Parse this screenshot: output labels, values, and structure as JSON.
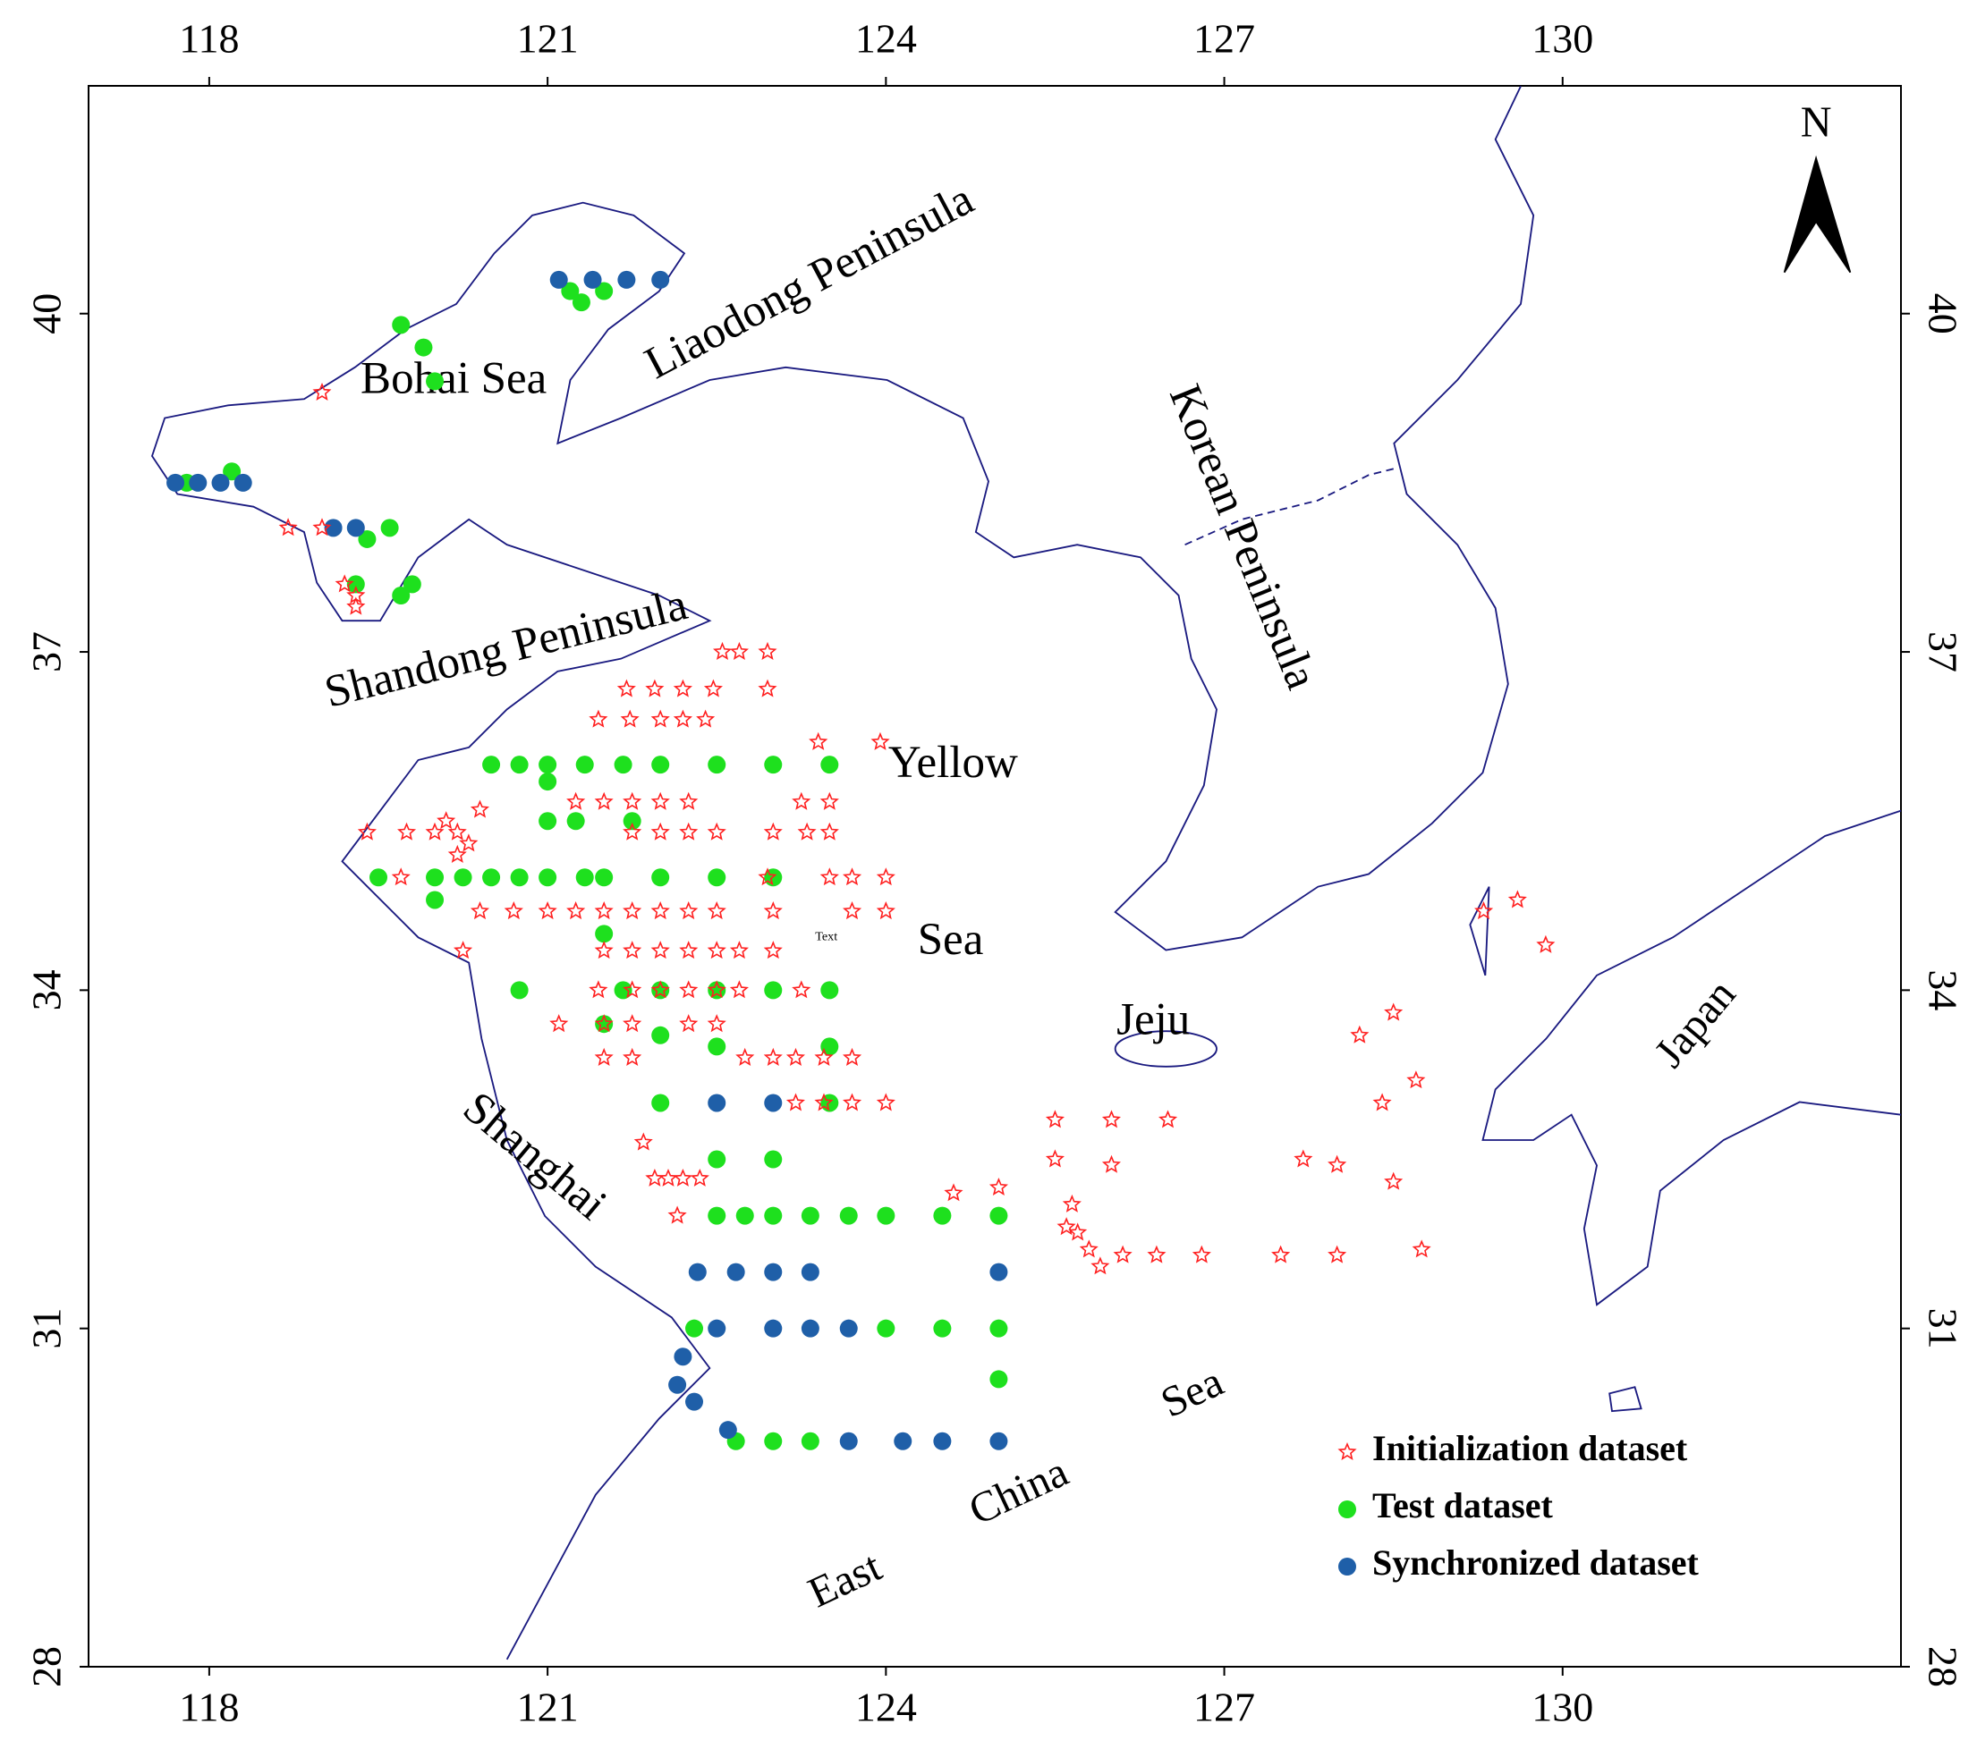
{
  "chart_data": {
    "type": "scatter",
    "xlim": [
      116.93,
      133.0
    ],
    "ylim": [
      28,
      42.02
    ],
    "xticks": [
      118,
      121,
      124,
      127,
      130
    ],
    "yticks": [
      28,
      31,
      34,
      37,
      40
    ],
    "annotations": [
      "Bohai Sea",
      "Liaodong Peninsula",
      "Korean Peninsula",
      "Shandong Peninsula",
      "Yellow",
      "Sea",
      "Jeju",
      "Shanghai",
      "Sea",
      "China",
      "East",
      "Japan",
      "Text",
      "N"
    ],
    "series": [
      {
        "name": "Initialization dataset",
        "color": "#ff2020",
        "marker": "star",
        "x": [
          122.55,
          122.7,
          122.95,
          121.7,
          121.95,
          122.2,
          122.47,
          122.95,
          121.45,
          121.73,
          122,
          122.2,
          122.4,
          123.4,
          123.95,
          121.25,
          121.5,
          121.75,
          122,
          122.25,
          123.25,
          123.5,
          119.4,
          119.75,
          120.0,
          120.2,
          121.75,
          122,
          122.25,
          122.5,
          123,
          123.3,
          123.5,
          119.7,
          122.95,
          123.5,
          123.7,
          124,
          120.4,
          120.7,
          121,
          121.25,
          121.5,
          121.75,
          122,
          122.25,
          122.5,
          123,
          123.7,
          124,
          120.25,
          121.5,
          121.75,
          122,
          122.25,
          122.5,
          122.7,
          123,
          121.45,
          121.75,
          122,
          122.25,
          122.5,
          122.7,
          123.25,
          121.1,
          121.5,
          121.75,
          122.25,
          122.5,
          121.5,
          121.75,
          122.75,
          123,
          123.2,
          123.45,
          123.7,
          123.2,
          123.45,
          123.7,
          124,
          121.85,
          121.95,
          122.07,
          122.2,
          122.35,
          122.15,
          125.5,
          126.0,
          126.5,
          125.5,
          126.0,
          124.6,
          125.0,
          125.65,
          125.6,
          125.7,
          125.8,
          125.9,
          126.1,
          126.4,
          126.8,
          127.5,
          128.0,
          128.75,
          127.7,
          128.0,
          128.5,
          128.7,
          128.4,
          128.2,
          128.5,
          129.3,
          129.6,
          129.85,
          119.0,
          118.7,
          119.0,
          119.2,
          119.3,
          119.3,
          120.1,
          120.3,
          120.4,
          120.2
        ],
        "y": [
          37.0,
          37.0,
          37.0,
          36.67,
          36.67,
          36.67,
          36.67,
          36.67,
          36.4,
          36.4,
          36.4,
          36.4,
          36.4,
          36.2,
          36.2,
          35.67,
          35.67,
          35.67,
          35.67,
          35.67,
          35.67,
          35.67,
          35.4,
          35.4,
          35.4,
          35.4,
          35.4,
          35.4,
          35.4,
          35.4,
          35.4,
          35.4,
          35.4,
          35.0,
          35.0,
          35.0,
          35.0,
          35.0,
          34.7,
          34.7,
          34.7,
          34.7,
          34.7,
          34.7,
          34.7,
          34.7,
          34.7,
          34.7,
          34.7,
          34.7,
          34.35,
          34.35,
          34.35,
          34.35,
          34.35,
          34.35,
          34.35,
          34.35,
          34.0,
          34.0,
          34.0,
          34.0,
          34.0,
          34.0,
          34.0,
          33.7,
          33.7,
          33.7,
          33.7,
          33.7,
          33.4,
          33.4,
          33.4,
          33.4,
          33.4,
          33.4,
          33.4,
          33.0,
          33.0,
          33.0,
          33.0,
          32.65,
          32.33,
          32.33,
          32.33,
          32.33,
          32.0,
          32.85,
          32.85,
          32.85,
          32.5,
          32.45,
          32.2,
          32.25,
          32.1,
          31.9,
          31.85,
          31.7,
          31.55,
          31.65,
          31.65,
          31.65,
          31.65,
          31.65,
          31.7,
          32.5,
          32.45,
          32.3,
          33.2,
          33.0,
          33.6,
          33.8,
          34.7,
          34.8,
          34.4,
          39.3,
          38.1,
          38.1,
          37.6,
          37.5,
          37.4,
          35.5,
          35.3,
          35.6,
          35.2
        ]
      },
      {
        "name": "Test dataset",
        "color": "#1ee01e",
        "marker": "circle",
        "x": [
          120.5,
          120.75,
          121,
          121.33,
          121.67,
          122,
          122.5,
          123,
          123.5,
          121,
          121,
          121.25,
          121.75,
          119.5,
          120,
          120.25,
          120.5,
          120.75,
          121,
          121.33,
          121.5,
          122,
          122.5,
          123,
          120,
          121.5,
          120.75,
          121.67,
          122,
          122.5,
          123,
          123.5,
          121.5,
          122,
          122.5,
          123.5,
          122,
          123.5,
          122.5,
          123,
          122.5,
          122.75,
          123,
          123.33,
          123.67,
          124,
          124.5,
          125,
          122.3,
          124,
          124.5,
          125,
          125,
          122.67,
          123,
          123.33,
          119.7,
          119.9,
          120.0,
          117.8,
          118.2,
          119.4,
          119.6,
          119.3,
          119.7,
          119.8,
          121.2,
          121.5,
          121.3
        ],
        "y": [
          36.0,
          36.0,
          36.0,
          36.0,
          36.0,
          36.0,
          36.0,
          36.0,
          36.0,
          35.85,
          35.5,
          35.5,
          35.5,
          35.0,
          35.0,
          35.0,
          35.0,
          35.0,
          35.0,
          35.0,
          35.0,
          35.0,
          35.0,
          35.0,
          34.8,
          34.5,
          34.0,
          34.0,
          34.0,
          34.0,
          34.0,
          34.0,
          33.7,
          33.6,
          33.5,
          33.5,
          33.0,
          33.0,
          32.5,
          32.5,
          32.0,
          32.0,
          32.0,
          32.0,
          32.0,
          32.0,
          32.0,
          32.0,
          31.0,
          31.0,
          31.0,
          31.0,
          30.55,
          30.0,
          30.0,
          30.0,
          39.9,
          39.7,
          39.4,
          38.5,
          38.6,
          38.0,
          38.1,
          37.6,
          37.5,
          37.6,
          40.2,
          40.2,
          40.1
        ]
      },
      {
        "name": "Synchronized dataset",
        "color": "#1f5fa8",
        "marker": "circle",
        "x": [
          122.5,
          123,
          122.33,
          122.67,
          123,
          123.33,
          125,
          122.5,
          123,
          123.33,
          123.67,
          122.2,
          122.15,
          122.3,
          122.6,
          123.67,
          124.15,
          124.5,
          125,
          121.1,
          121.4,
          121.7,
          122.0,
          117.7,
          117.9,
          118.1,
          118.3,
          119.1,
          119.3
        ],
        "y": [
          33.0,
          33.0,
          31.5,
          31.5,
          31.5,
          31.5,
          31.5,
          31.0,
          31.0,
          31.0,
          31.0,
          30.75,
          30.5,
          30.35,
          30.1,
          30.0,
          30.0,
          30.0,
          30.0,
          40.3,
          40.3,
          40.3,
          40.3,
          38.5,
          38.5,
          38.5,
          38.5,
          38.1,
          38.1
        ]
      }
    ]
  }
}
